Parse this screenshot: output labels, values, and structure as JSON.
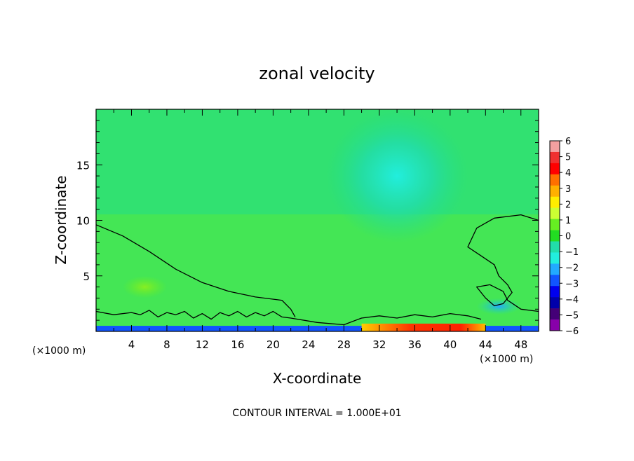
{
  "chart_data": {
    "type": "heatmap",
    "title": "zonal velocity",
    "xlabel": "X-coordinate",
    "ylabel": "Z-coordinate",
    "x_unit_left": "(×1000 m)",
    "x_unit_right": "(×1000 m)",
    "footer": "CONTOUR INTERVAL = 1.000E+01",
    "xlim": [
      0,
      50
    ],
    "ylim": [
      0,
      20
    ],
    "x_ticks": [
      {
        "value": 4,
        "label": "4"
      },
      {
        "value": 8,
        "label": "8"
      },
      {
        "value": 12,
        "label": "12"
      },
      {
        "value": 16,
        "label": "16"
      },
      {
        "value": 20,
        "label": "20"
      },
      {
        "value": 24,
        "label": "24"
      },
      {
        "value": 28,
        "label": "28"
      },
      {
        "value": 32,
        "label": "32"
      },
      {
        "value": 36,
        "label": "36"
      },
      {
        "value": 40,
        "label": "40"
      },
      {
        "value": 44,
        "label": "44"
      },
      {
        "value": 48,
        "label": "48"
      }
    ],
    "y_ticks": [
      {
        "value": 5,
        "label": "5"
      },
      {
        "value": 10,
        "label": "10"
      },
      {
        "value": 15,
        "label": "15"
      }
    ],
    "colorbar": {
      "min": -6,
      "max": 6,
      "labels": [
        "6",
        "5",
        "4",
        "3",
        "2",
        "1",
        "0",
        "−1",
        "−2",
        "−3",
        "−4",
        "−5",
        "−6"
      ],
      "colors": [
        "#f4a0a0",
        "#f03030",
        "#ff0000",
        "#ff7000",
        "#ffb000",
        "#ffee00",
        "#ccff33",
        "#66ee22",
        "#22dd22",
        "#22ddaa",
        "#22eedd",
        "#22aaff",
        "#1155ff",
        "#0000ee",
        "#0000aa",
        "#440077",
        "#8800aa"
      ]
    },
    "contours": [
      {
        "name": "upper",
        "points": [
          [
            0,
            9.6
          ],
          [
            3,
            8.6
          ],
          [
            6,
            7.2
          ],
          [
            9,
            5.6
          ],
          [
            12,
            4.4
          ],
          [
            15,
            3.6
          ],
          [
            18,
            3.1
          ],
          [
            21,
            2.8
          ],
          [
            22,
            2.0
          ],
          [
            22.5,
            1.3
          ]
        ]
      },
      {
        "name": "right-lobe",
        "points": [
          [
            50,
            10.0
          ],
          [
            48,
            10.5
          ],
          [
            45,
            10.2
          ],
          [
            43,
            9.3
          ],
          [
            42,
            7.6
          ],
          [
            43.5,
            6.8
          ],
          [
            45,
            6.0
          ],
          [
            45.5,
            5.0
          ],
          [
            46.5,
            4.2
          ],
          [
            47,
            3.5
          ],
          [
            46,
            2.5
          ],
          [
            45,
            2.3
          ],
          [
            44,
            3.0
          ],
          [
            43,
            4.0
          ],
          [
            44.5,
            4.2
          ],
          [
            46,
            3.6
          ],
          [
            46.5,
            2.8
          ],
          [
            48,
            2.0
          ],
          [
            50,
            1.8
          ]
        ]
      },
      {
        "name": "low-band",
        "points": [
          [
            0,
            1.8
          ],
          [
            2,
            1.5
          ],
          [
            4,
            1.7
          ],
          [
            5,
            1.5
          ],
          [
            6,
            1.9
          ],
          [
            7,
            1.3
          ],
          [
            8,
            1.7
          ],
          [
            9,
            1.5
          ],
          [
            10,
            1.8
          ],
          [
            11,
            1.2
          ],
          [
            12,
            1.6
          ],
          [
            13,
            1.1
          ],
          [
            14,
            1.7
          ],
          [
            15,
            1.4
          ],
          [
            16,
            1.8
          ],
          [
            17,
            1.3
          ],
          [
            18,
            1.7
          ],
          [
            19,
            1.4
          ],
          [
            20,
            1.8
          ],
          [
            21,
            1.3
          ],
          [
            22,
            1.2
          ],
          [
            25,
            0.8
          ],
          [
            28,
            0.6
          ],
          [
            30,
            1.2
          ],
          [
            32,
            1.4
          ],
          [
            34,
            1.2
          ],
          [
            36,
            1.5
          ],
          [
            38,
            1.3
          ],
          [
            40,
            1.6
          ],
          [
            42,
            1.4
          ],
          [
            43.5,
            1.1
          ]
        ]
      }
    ],
    "features": [
      {
        "region": "surface",
        "x_range": [
          0,
          50
        ],
        "z_range": [
          0,
          0.5
        ],
        "value": -3
      },
      {
        "region": "surface-jet",
        "x_range": [
          30,
          44
        ],
        "z_range": [
          0,
          0.7
        ],
        "value": 4
      },
      {
        "region": "upper-center",
        "x_range": [
          26,
          42
        ],
        "z_range": [
          8,
          20
        ],
        "value": -2
      },
      {
        "region": "right-low",
        "x_range": [
          43,
          48
        ],
        "z_range": [
          1.5,
          3
        ],
        "value": -2.5
      },
      {
        "region": "left-lobe",
        "x_range": [
          3,
          8
        ],
        "z_range": [
          3,
          5
        ],
        "value": 1
      }
    ]
  }
}
